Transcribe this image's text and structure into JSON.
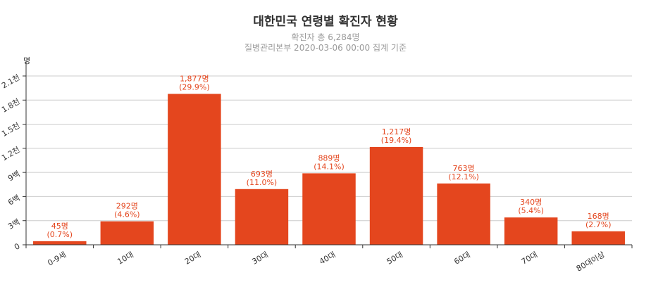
{
  "chart_data": {
    "type": "bar",
    "title": "대한민국 연령별 확진자 현황",
    "subtitle_lines": [
      "확진자 총 6,284명",
      "질병관리본부 2020-03-06 00:00 집계 기준"
    ],
    "ylabel": "명",
    "categories": [
      "0-9세",
      "10대",
      "20대",
      "30대",
      "40대",
      "50대",
      "60대",
      "70대",
      "80대이상"
    ],
    "values": [
      45,
      292,
      1877,
      693,
      889,
      1217,
      763,
      340,
      168
    ],
    "value_labels": [
      "45명",
      "292명",
      "1,877명",
      "693명",
      "889명",
      "1,217명",
      "763명",
      "340명",
      "168명"
    ],
    "percent_labels": [
      "(0.7%)",
      "(4.6%)",
      "(29.9%)",
      "(11.0%)",
      "(14.1%)",
      "(19.4%)",
      "(12.1%)",
      "(5.4%)",
      "(2.7%)"
    ],
    "ylim": [
      0,
      2100
    ],
    "yticks": [
      0,
      300,
      600,
      900,
      1200,
      1500,
      1800,
      2100
    ],
    "ytick_labels": [
      "0",
      "3백",
      "6백",
      "9백",
      "1.2천",
      "1.5천",
      "1.8천",
      "2.1천"
    ],
    "grid": true,
    "bar_color": "#e4461e",
    "label_color": "#e4461e"
  }
}
